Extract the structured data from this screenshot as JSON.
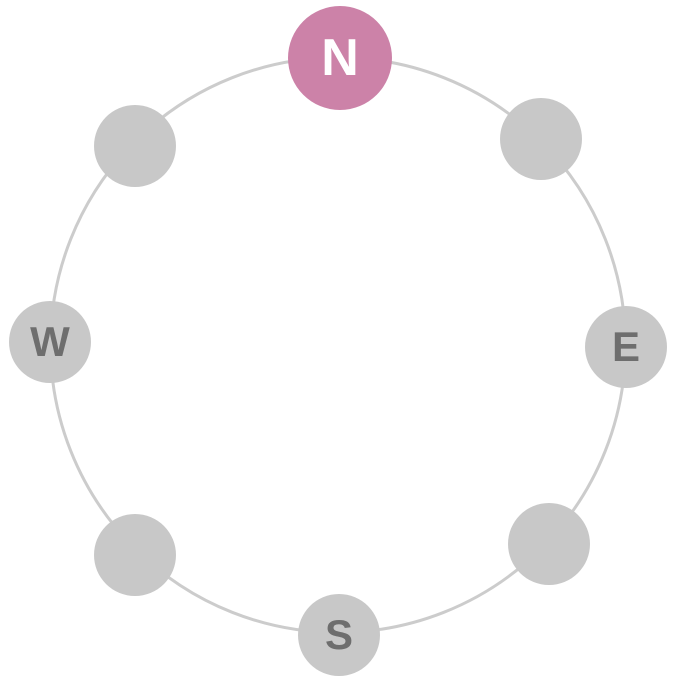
{
  "compass": {
    "selected": "north",
    "colors": {
      "active": "#cc82a8",
      "inactive": "#c8c8c8",
      "ring": "#cccccc",
      "label": "#6e6e6e",
      "active_label": "#ffffff"
    },
    "nodes": {
      "north": {
        "label": "N"
      },
      "northeast": {
        "label": ""
      },
      "east": {
        "label": "E"
      },
      "southeast": {
        "label": ""
      },
      "south": {
        "label": "S"
      },
      "southwest": {
        "label": ""
      },
      "west": {
        "label": "W"
      },
      "northwest": {
        "label": ""
      }
    }
  }
}
